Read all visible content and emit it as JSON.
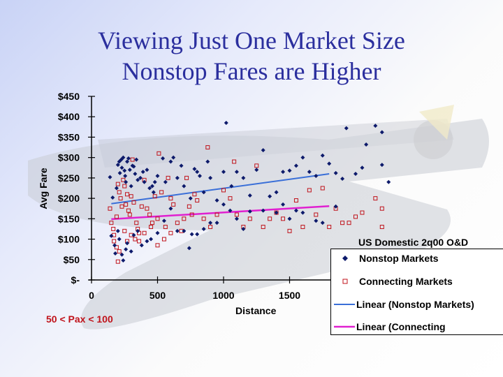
{
  "slide": {
    "title_line1": "Viewing Just One Market Size",
    "title_line2": "Nonstop Fares are Higher",
    "note": "50 < Pax < 100"
  },
  "colors": {
    "title": "#2b2f9e",
    "nonstop": "#0d1a6b",
    "connecting": "#c0131b",
    "nonstop_trend": "#3a6fd8",
    "connecting_trend": "#e020d0",
    "note": "#c0131b"
  },
  "legend": {
    "title": "US Domestic 2q00 O&D",
    "items": [
      {
        "label": "Nonstop Markets",
        "marker": "diamond"
      },
      {
        "label": "Connecting Markets",
        "marker": "open-square"
      },
      {
        "label": "Linear (Nonstop Markets)",
        "marker": "blue-line"
      },
      {
        "label": "Linear (Connecting",
        "marker": "magenta-line"
      }
    ]
  },
  "chart_data": {
    "type": "scatter",
    "title": "Viewing Just One Market Size / Nonstop Fares are Higher",
    "xlabel": "Distance",
    "ylabel": "Avg Fare",
    "xlim": [
      0,
      2000
    ],
    "ylim": [
      0,
      450
    ],
    "x_ticks": [
      "0",
      "500",
      "1000",
      "1500"
    ],
    "y_ticks": [
      "$-",
      "$50",
      "$100",
      "$150",
      "$200",
      "$250",
      "$300",
      "$350",
      "$400",
      "$450"
    ],
    "grid": false,
    "legend_position": "lower right",
    "annotation": "50 < Pax < 100",
    "series": [
      {
        "name": "Nonstop Markets",
        "marker": "diamond",
        "points": [
          [
            140,
            252
          ],
          [
            160,
            202
          ],
          [
            190,
            225
          ],
          [
            200,
            282
          ],
          [
            210,
            290
          ],
          [
            215,
            262
          ],
          [
            225,
            295
          ],
          [
            230,
            275
          ],
          [
            240,
            300
          ],
          [
            250,
            268
          ],
          [
            255,
            255
          ],
          [
            260,
            240
          ],
          [
            270,
            290
          ],
          [
            280,
            298
          ],
          [
            290,
            270
          ],
          [
            300,
            230
          ],
          [
            310,
            280
          ],
          [
            320,
            278
          ],
          [
            330,
            260
          ],
          [
            340,
            295
          ],
          [
            350,
            245
          ],
          [
            370,
            250
          ],
          [
            390,
            265
          ],
          [
            400,
            240
          ],
          [
            420,
            270
          ],
          [
            440,
            225
          ],
          [
            460,
            230
          ],
          [
            470,
            215
          ],
          [
            480,
            240
          ],
          [
            500,
            255
          ],
          [
            540,
            298
          ],
          [
            560,
            240
          ],
          [
            600,
            290
          ],
          [
            620,
            300
          ],
          [
            650,
            250
          ],
          [
            680,
            280
          ],
          [
            700,
            230
          ],
          [
            750,
            200
          ],
          [
            780,
            272
          ],
          [
            800,
            265
          ],
          [
            820,
            255
          ],
          [
            850,
            215
          ],
          [
            880,
            290
          ],
          [
            900,
            250
          ],
          [
            950,
            195
          ],
          [
            1000,
            265
          ],
          [
            1020,
            385
          ],
          [
            1060,
            230
          ],
          [
            1100,
            265
          ],
          [
            1150,
            250
          ],
          [
            1200,
            207
          ],
          [
            1250,
            270
          ],
          [
            1300,
            318
          ],
          [
            1350,
            205
          ],
          [
            1400,
            215
          ],
          [
            1450,
            265
          ],
          [
            1500,
            268
          ],
          [
            1550,
            280
          ],
          [
            1600,
            300
          ],
          [
            1650,
            265
          ],
          [
            1700,
            255
          ],
          [
            1750,
            305
          ],
          [
            1800,
            285
          ],
          [
            1850,
            262
          ],
          [
            1900,
            248
          ],
          [
            1930,
            372
          ],
          [
            2000,
            260
          ],
          [
            2050,
            275
          ],
          [
            2080,
            332
          ],
          [
            2150,
            378
          ],
          [
            2200,
            282
          ],
          [
            2200,
            362
          ],
          [
            2250,
            240
          ],
          [
            150,
            108
          ],
          [
            175,
            85
          ],
          [
            180,
            65
          ],
          [
            200,
            120
          ],
          [
            210,
            100
          ],
          [
            230,
            62
          ],
          [
            240,
            48
          ],
          [
            260,
            75
          ],
          [
            270,
            90
          ],
          [
            300,
            70
          ],
          [
            320,
            110
          ],
          [
            350,
            120
          ],
          [
            380,
            85
          ],
          [
            420,
            95
          ],
          [
            450,
            100
          ],
          [
            500,
            115
          ],
          [
            550,
            145
          ],
          [
            600,
            175
          ],
          [
            650,
            120
          ],
          [
            700,
            120
          ],
          [
            740,
            78
          ],
          [
            760,
            112
          ],
          [
            800,
            112
          ],
          [
            850,
            125
          ],
          [
            900,
            140
          ],
          [
            950,
            140
          ],
          [
            1000,
            185
          ],
          [
            1050,
            170
          ],
          [
            1100,
            150
          ],
          [
            1150,
            125
          ],
          [
            1200,
            168
          ],
          [
            1300,
            170
          ],
          [
            1400,
            165
          ],
          [
            1450,
            185
          ],
          [
            1500,
            150
          ],
          [
            1550,
            170
          ],
          [
            1600,
            165
          ],
          [
            1700,
            145
          ],
          [
            1750,
            140
          ],
          [
            1850,
            180
          ]
        ]
      },
      {
        "name": "Connecting Markets",
        "marker": "open-square",
        "points": [
          [
            140,
            175
          ],
          [
            150,
            140
          ],
          [
            165,
            125
          ],
          [
            170,
            110
          ],
          [
            190,
            155
          ],
          [
            200,
            235
          ],
          [
            210,
            215
          ],
          [
            220,
            200
          ],
          [
            230,
            180
          ],
          [
            240,
            245
          ],
          [
            250,
            230
          ],
          [
            260,
            185
          ],
          [
            270,
            210
          ],
          [
            280,
            170
          ],
          [
            290,
            160
          ],
          [
            300,
            205
          ],
          [
            310,
            295
          ],
          [
            320,
            190
          ],
          [
            340,
            140
          ],
          [
            350,
            125
          ],
          [
            360,
            115
          ],
          [
            380,
            180
          ],
          [
            400,
            245
          ],
          [
            420,
            175
          ],
          [
            440,
            160
          ],
          [
            460,
            140
          ],
          [
            480,
            205
          ],
          [
            500,
            150
          ],
          [
            510,
            310
          ],
          [
            530,
            215
          ],
          [
            560,
            130
          ],
          [
            580,
            250
          ],
          [
            600,
            200
          ],
          [
            620,
            185
          ],
          [
            650,
            140
          ],
          [
            680,
            120
          ],
          [
            700,
            150
          ],
          [
            720,
            250
          ],
          [
            740,
            180
          ],
          [
            760,
            160
          ],
          [
            780,
            210
          ],
          [
            800,
            195
          ],
          [
            850,
            150
          ],
          [
            880,
            325
          ],
          [
            900,
            130
          ],
          [
            950,
            160
          ],
          [
            1000,
            220
          ],
          [
            1050,
            200
          ],
          [
            1080,
            290
          ],
          [
            1100,
            160
          ],
          [
            1150,
            130
          ],
          [
            1200,
            150
          ],
          [
            1250,
            280
          ],
          [
            1300,
            130
          ],
          [
            1350,
            150
          ],
          [
            1400,
            165
          ],
          [
            1450,
            150
          ],
          [
            1500,
            120
          ],
          [
            1550,
            195
          ],
          [
            1600,
            130
          ],
          [
            1650,
            220
          ],
          [
            1700,
            160
          ],
          [
            1750,
            225
          ],
          [
            1800,
            130
          ],
          [
            1850,
            175
          ],
          [
            1900,
            140
          ],
          [
            1950,
            140
          ],
          [
            2000,
            155
          ],
          [
            2050,
            165
          ],
          [
            2150,
            200
          ],
          [
            2200,
            130
          ],
          [
            2200,
            175
          ],
          [
            170,
            95
          ],
          [
            190,
            80
          ],
          [
            200,
            45
          ],
          [
            210,
            70
          ],
          [
            250,
            120
          ],
          [
            270,
            95
          ],
          [
            300,
            110
          ],
          [
            330,
            100
          ],
          [
            360,
            95
          ],
          [
            400,
            115
          ],
          [
            450,
            130
          ],
          [
            500,
            85
          ],
          [
            550,
            100
          ],
          [
            600,
            115
          ]
        ]
      }
    ],
    "trendlines": [
      {
        "name": "Linear (Nonstop Markets)",
        "from": [
          150,
          187
        ],
        "to": [
          1800,
          260
        ]
      },
      {
        "name": "Linear (Connecting",
        "from": [
          150,
          149
        ],
        "to": [
          1800,
          181
        ]
      }
    ]
  }
}
